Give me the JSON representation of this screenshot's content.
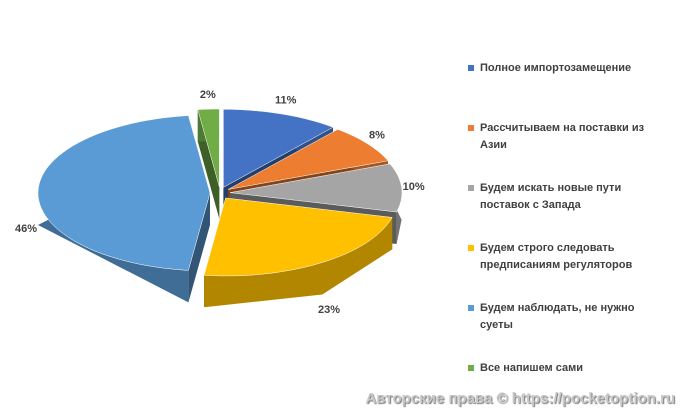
{
  "chart_data": {
    "type": "pie3d",
    "categories": [
      "Полное импортозамещение",
      "Рассчитываем на поставки из Азии",
      "Будем искать новые пути поставок с Запада",
      "Будем строго следовать предписаниям регуляторов",
      "Будем наблюдать, не нужно суеты",
      "Все напишем сами"
    ],
    "values": [
      11,
      8,
      10,
      23,
      46,
      2
    ],
    "value_labels": [
      "11%",
      "8%",
      "10%",
      "23%",
      "46%",
      "2%"
    ],
    "colors": [
      "#4472c4",
      "#ed7d31",
      "#a5a5a5",
      "#ffc000",
      "#5b9bd5",
      "#70ad47"
    ],
    "legend": "right"
  },
  "watermark": "Авторские права © https://pocketoption.ru"
}
